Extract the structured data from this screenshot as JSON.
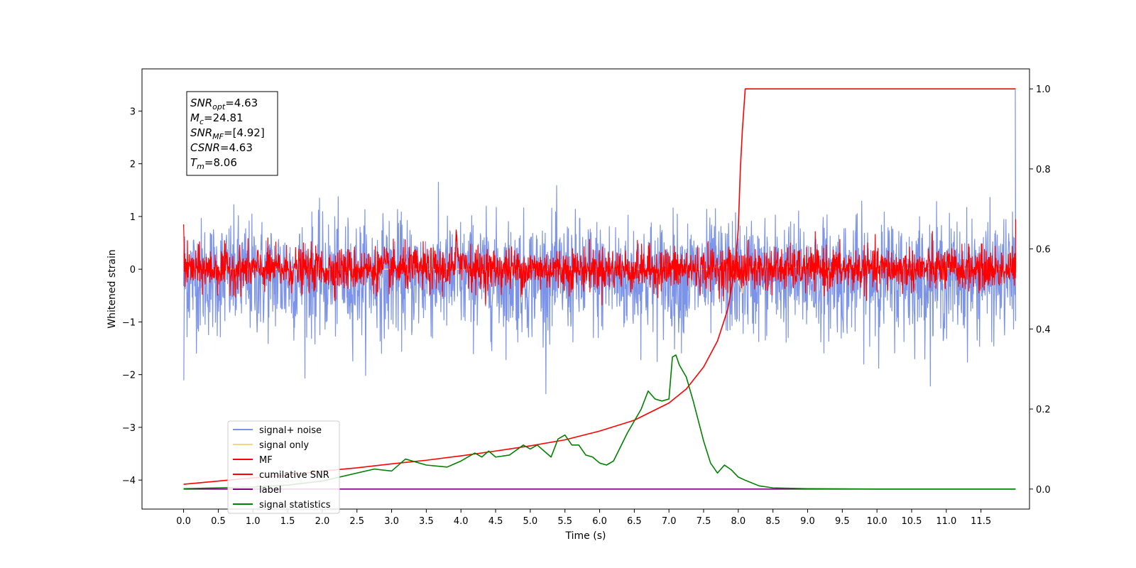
{
  "chart_data": {
    "type": "line",
    "title": "",
    "xlabel": "Time (s)",
    "ylabel": "Whitened strain",
    "y2label": "",
    "xlim": [
      -0.6,
      12.2
    ],
    "ylim": [
      -4.55,
      3.8
    ],
    "y2lim": [
      -0.05,
      1.05
    ],
    "x_ticks": [
      0.0,
      0.5,
      1.0,
      1.5,
      2.0,
      2.5,
      3.0,
      3.5,
      4.0,
      4.5,
      5.0,
      5.5,
      6.0,
      6.5,
      7.0,
      7.5,
      8.0,
      8.5,
      9.0,
      9.5,
      10.0,
      10.5,
      11.0,
      11.5
    ],
    "x_tick_labels": [
      "0.0",
      "0.5",
      "1.0",
      "1.5",
      "2.0",
      "2.5",
      "3.0",
      "3.5",
      "4.0",
      "4.5",
      "5.0",
      "5.5",
      "6.0",
      "6.5",
      "7.0",
      "7.5",
      "8.0",
      "8.5",
      "9.0",
      "9.5",
      "10.0",
      "10.5",
      "11.0",
      "11.5"
    ],
    "y_ticks": [
      -4,
      -3,
      -2,
      -1,
      0,
      1,
      2,
      3
    ],
    "y_tick_labels": [
      "−4",
      "−3",
      "−2",
      "−1",
      "0",
      "1",
      "2",
      "3"
    ],
    "y2_ticks": [
      0.0,
      0.2,
      0.4,
      0.6,
      0.8,
      1.0
    ],
    "y2_tick_labels": [
      "0.0",
      "0.2",
      "0.4",
      "0.6",
      "0.8",
      "1.0"
    ],
    "grid": false,
    "legend_position": "lower-left",
    "series": [
      {
        "name": "signal+ noise",
        "color": "#7b93e8",
        "axis": "left",
        "kind": "noise",
        "mean": -0.15,
        "amplitude": 0.55,
        "x_range": [
          0.0,
          12.0
        ],
        "notes_values": {
          "start_dip": -2.1,
          "end_spike": 3.4
        }
      },
      {
        "name": "signal only",
        "color": "#f5d58c",
        "axis": "left",
        "x": [
          0.0,
          7.6,
          7.8,
          8.0,
          8.06,
          8.1,
          12.0
        ],
        "y": [
          0.0,
          0.0,
          0.1,
          -0.2,
          -0.45,
          0.05,
          0.0
        ]
      },
      {
        "name": "MF",
        "color": "#ff0000",
        "axis": "left",
        "kind": "noise",
        "mean": 0.0,
        "amplitude": 0.2,
        "x_range": [
          0.0,
          12.0
        ]
      },
      {
        "name": "cumilative SNR",
        "color": "#ff0000",
        "axis": "right",
        "x": [
          0.0,
          0.5,
          1.0,
          1.5,
          2.0,
          2.5,
          3.0,
          3.5,
          4.0,
          4.5,
          5.0,
          5.5,
          6.0,
          6.5,
          7.0,
          7.25,
          7.5,
          7.7,
          7.85,
          7.95,
          8.0,
          8.03,
          8.06,
          8.1,
          12.0
        ],
        "y": [
          0.012,
          0.02,
          0.028,
          0.035,
          0.045,
          0.053,
          0.063,
          0.072,
          0.083,
          0.095,
          0.108,
          0.123,
          0.145,
          0.172,
          0.215,
          0.25,
          0.305,
          0.37,
          0.45,
          0.55,
          0.65,
          0.8,
          0.9,
          1.0,
          1.0
        ]
      },
      {
        "name": "label",
        "color": "#7b007b",
        "axis": "right",
        "x": [
          0.0,
          12.0
        ],
        "y": [
          0.0,
          0.0
        ]
      },
      {
        "name": "signal statistics",
        "color": "#008000",
        "axis": "right",
        "x": [
          0.0,
          0.5,
          1.0,
          1.5,
          2.0,
          2.5,
          2.75,
          3.0,
          3.2,
          3.5,
          3.8,
          4.0,
          4.2,
          4.3,
          4.4,
          4.5,
          4.7,
          4.9,
          5.0,
          5.1,
          5.3,
          5.4,
          5.5,
          5.6,
          5.7,
          5.8,
          5.9,
          6.0,
          6.1,
          6.2,
          6.4,
          6.5,
          6.6,
          6.7,
          6.8,
          6.9,
          7.0,
          7.05,
          7.1,
          7.15,
          7.25,
          7.35,
          7.5,
          7.6,
          7.7,
          7.8,
          7.9,
          8.0,
          8.1,
          8.3,
          8.5,
          9.0,
          10.0,
          11.0,
          12.0
        ],
        "y": [
          0.001,
          0.003,
          0.005,
          0.01,
          0.02,
          0.04,
          0.05,
          0.045,
          0.075,
          0.06,
          0.055,
          0.07,
          0.09,
          0.08,
          0.095,
          0.08,
          0.085,
          0.11,
          0.1,
          0.11,
          0.08,
          0.125,
          0.135,
          0.11,
          0.11,
          0.085,
          0.08,
          0.065,
          0.06,
          0.07,
          0.14,
          0.17,
          0.2,
          0.245,
          0.225,
          0.22,
          0.225,
          0.33,
          0.335,
          0.31,
          0.28,
          0.22,
          0.12,
          0.065,
          0.04,
          0.06,
          0.048,
          0.03,
          0.022,
          0.008,
          0.003,
          0.001,
          0.0,
          0.0,
          0.0
        ]
      }
    ],
    "annotations": [
      {
        "name": "SNR",
        "sub": "opt",
        "value": "=4.63"
      },
      {
        "name": "M",
        "sub": "c",
        "value": "=24.81"
      },
      {
        "name": "SNR",
        "sub": "MF",
        "value": "=[4.92]"
      },
      {
        "name": "CSNR",
        "sub": "",
        "value": "=4.63"
      },
      {
        "name": "T",
        "sub": "m",
        "value": "=8.06"
      }
    ]
  }
}
